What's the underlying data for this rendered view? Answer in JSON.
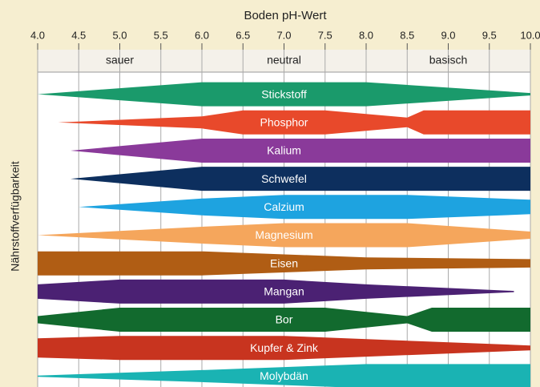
{
  "chart_data": {
    "type": "band",
    "title": "Boden pH-Wert",
    "y_label": "Nährstoffverfügbarkeit",
    "zones": [
      "sauer",
      "neutral",
      "basisch"
    ],
    "xlim": [
      4,
      10
    ],
    "xticks": [
      {
        "value": 4,
        "label": "4.0"
      },
      4.5,
      {
        "value": 5,
        "label": "5.0"
      },
      5.5,
      {
        "value": 6,
        "label": "6.0"
      },
      6.5,
      {
        "value": 7,
        "label": "7.0"
      },
      7.5,
      {
        "value": 8,
        "label": "8.0"
      },
      8.5,
      {
        "value": 9,
        "label": "9.0"
      },
      9.5,
      {
        "value": 10,
        "label": "10.0"
      }
    ],
    "grid": true,
    "series": [
      {
        "name": "Stickstoff",
        "color": "#1a9a6b",
        "x": [
          4.0,
          6.0,
          8.0,
          10.0
        ],
        "values": [
          0,
          1,
          1,
          0.1
        ]
      },
      {
        "name": "Phosphor",
        "color": "#e8492b",
        "x": [
          4.25,
          6.0,
          6.5,
          7.5,
          8.5,
          8.7,
          10.0
        ],
        "values": [
          0,
          0.5,
          1,
          1,
          0.4,
          1,
          1
        ]
      },
      {
        "name": "Kalium",
        "color": "#8a3a9a",
        "x": [
          4.4,
          6.0,
          10.0
        ],
        "values": [
          0,
          1,
          1
        ]
      },
      {
        "name": "Schwefel",
        "color": "#0d2f5e",
        "x": [
          4.4,
          6.0,
          10.0
        ],
        "values": [
          0,
          1,
          1
        ]
      },
      {
        "name": "Calzium",
        "color": "#1ea3e0",
        "x": [
          4.5,
          6.0,
          7.0,
          8.5,
          10.0
        ],
        "values": [
          0,
          0.7,
          1,
          1,
          0.6
        ]
      },
      {
        "name": "Magnesium",
        "color": "#f5a65c",
        "x": [
          4.0,
          6.0,
          7.0,
          8.5,
          10.0
        ],
        "values": [
          0,
          0.7,
          1,
          1,
          0.3
        ]
      },
      {
        "name": "Eisen",
        "color": "#b05d14",
        "x": [
          4.0,
          6.0,
          8.0,
          10.0
        ],
        "values": [
          1,
          1,
          0.5,
          0.35
        ]
      },
      {
        "name": "Mangan",
        "color": "#4b2173",
        "x": [
          4.0,
          5.0,
          7.0,
          8.0,
          9.8
        ],
        "values": [
          0.6,
          1,
          1,
          0.6,
          0.05
        ]
      },
      {
        "name": "Bor",
        "color": "#126a2e",
        "x": [
          4.0,
          5.0,
          7.5,
          8.5,
          8.8,
          10.0
        ],
        "values": [
          0.3,
          1,
          1,
          0.3,
          1,
          1
        ]
      },
      {
        "name": "Kupfer & Zink",
        "color": "#c8341f",
        "x": [
          4.0,
          5.0,
          7.0,
          10.0
        ],
        "values": [
          0.8,
          1,
          1,
          0.2
        ]
      },
      {
        "name": "Molybdän",
        "color": "#1ab3b3",
        "x": [
          4.0,
          6.0,
          8.0,
          10.0
        ],
        "values": [
          0.05,
          0.5,
          1,
          1
        ]
      }
    ]
  }
}
